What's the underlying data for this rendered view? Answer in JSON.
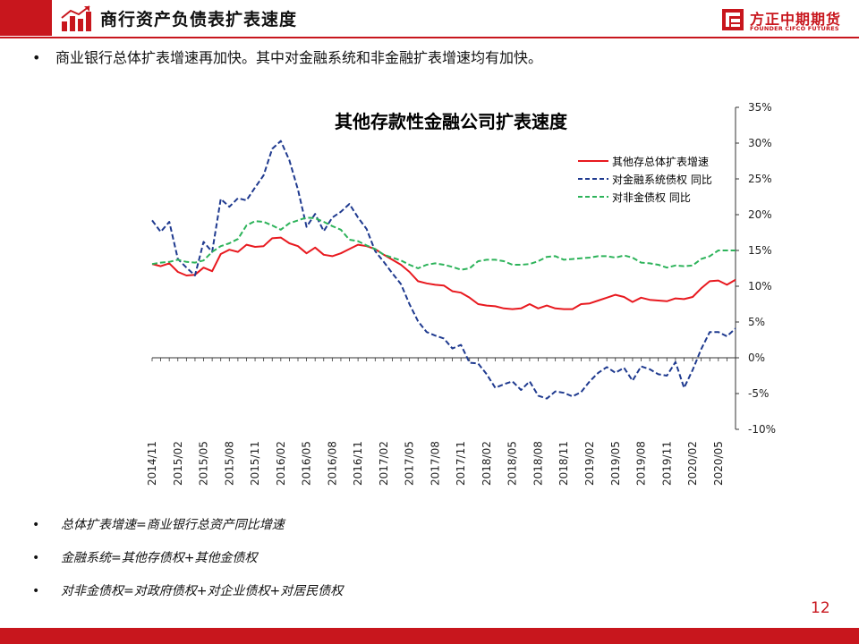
{
  "header": {
    "title": "商行资产负债表扩表速度",
    "logo_cn": "方正中期期货",
    "logo_en": "FOUNDER CIFCO FUTURES"
  },
  "bullet_main": "商业银行总体扩表增速再加快。其中对金融系统和非金融扩表增速均有加快。",
  "chart_data": {
    "type": "line",
    "title": "其他存款性金融公司扩表速度",
    "x": [
      "2014/11",
      "2014/12",
      "2015/01",
      "2015/02",
      "2015/03",
      "2015/04",
      "2015/05",
      "2015/06",
      "2015/07",
      "2015/08",
      "2015/09",
      "2015/10",
      "2015/11",
      "2015/12",
      "2016/01",
      "2016/02",
      "2016/03",
      "2016/04",
      "2016/05",
      "2016/06",
      "2016/07",
      "2016/08",
      "2016/09",
      "2016/10",
      "2016/11",
      "2016/12",
      "2017/01",
      "2017/02",
      "2017/03",
      "2017/04",
      "2017/05",
      "2017/06",
      "2017/07",
      "2017/08",
      "2017/09",
      "2017/10",
      "2017/11",
      "2017/12",
      "2018/01",
      "2018/02",
      "2018/03",
      "2018/04",
      "2018/05",
      "2018/06",
      "2018/07",
      "2018/08",
      "2018/09",
      "2018/10",
      "2018/11",
      "2018/12",
      "2019/01",
      "2019/02",
      "2019/03",
      "2019/04",
      "2019/05",
      "2019/06",
      "2019/07",
      "2019/08",
      "2019/09",
      "2019/10",
      "2019/11",
      "2019/12",
      "2020/01",
      "2020/02",
      "2020/03",
      "2020/04",
      "2020/05",
      "2020/06",
      "2020/07"
    ],
    "tick_labels": [
      "2014/11",
      "2015/02",
      "2015/05",
      "2015/08",
      "2015/11",
      "2016/02",
      "2016/05",
      "2016/08",
      "2016/11",
      "2017/02",
      "2017/05",
      "2017/08",
      "2017/11",
      "2018/02",
      "2018/05",
      "2018/08",
      "2018/11",
      "2019/02",
      "2019/05",
      "2019/08",
      "2019/11",
      "2020/02",
      "2020/05"
    ],
    "y_axis": {
      "min": -10,
      "max": 35,
      "step": 5,
      "position": "right",
      "format": "percent"
    },
    "legend_position": "top-right",
    "grid": false,
    "series": [
      {
        "name": "其他存总体扩表增速",
        "color": "#e8191f",
        "dash": "solid",
        "values": [
          13.1,
          12.8,
          13.2,
          12.0,
          11.5,
          11.6,
          12.6,
          12.1,
          14.5,
          15.1,
          14.8,
          15.8,
          15.5,
          15.6,
          16.7,
          16.8,
          16.0,
          15.6,
          14.6,
          15.4,
          14.4,
          14.2,
          14.6,
          15.2,
          15.8,
          15.6,
          15.2,
          14.4,
          13.7,
          13.0,
          12.0,
          10.7,
          10.4,
          10.2,
          10.1,
          9.3,
          9.1,
          8.4,
          7.5,
          7.3,
          7.2,
          6.9,
          6.8,
          6.9,
          7.5,
          6.9,
          7.3,
          6.9,
          6.8,
          6.8,
          7.5,
          7.6,
          8.0,
          8.4,
          8.8,
          8.5,
          7.8,
          8.4,
          8.1,
          8.0,
          7.9,
          8.3,
          8.2,
          8.5,
          9.7,
          10.7,
          10.8,
          10.2,
          10.9
        ]
      },
      {
        "name": "对金融系统债权  同比",
        "color": "#1f3a8f",
        "dash": "dashed",
        "values": [
          19.2,
          17.6,
          19.0,
          13.8,
          12.6,
          11.5,
          16.2,
          14.8,
          22.2,
          21.1,
          22.3,
          22.0,
          23.8,
          25.5,
          29.2,
          30.3,
          27.6,
          23.5,
          18.3,
          20.1,
          17.7,
          19.6,
          20.4,
          21.5,
          19.6,
          18.0,
          14.9,
          13.4,
          11.8,
          10.3,
          7.5,
          5.1,
          3.6,
          3.1,
          2.7,
          1.3,
          1.8,
          -0.7,
          -0.8,
          -2.3,
          -4.2,
          -3.7,
          -3.3,
          -4.5,
          -3.3,
          -5.3,
          -5.7,
          -4.7,
          -4.9,
          -5.4,
          -4.8,
          -3.3,
          -2.1,
          -1.3,
          -2.1,
          -1.4,
          -3.2,
          -1.2,
          -1.6,
          -2.3,
          -2.5,
          -0.6,
          -4.2,
          -1.7,
          1.2,
          3.6,
          3.6,
          3.0,
          4.1
        ]
      },
      {
        "name": "对非金债权  同比",
        "color": "#2db35a",
        "dash": "dashed",
        "values": [
          13.1,
          13.3,
          13.4,
          13.7,
          13.4,
          13.3,
          13.6,
          14.8,
          15.6,
          16.0,
          16.6,
          18.5,
          19.1,
          19.0,
          18.5,
          17.9,
          18.8,
          19.2,
          19.6,
          19.5,
          19.0,
          18.4,
          17.9,
          16.5,
          16.3,
          15.7,
          15.2,
          14.4,
          14.0,
          13.6,
          13.0,
          12.5,
          13.0,
          13.2,
          13.0,
          12.7,
          12.3,
          12.5,
          13.5,
          13.7,
          13.7,
          13.5,
          13.0,
          13.0,
          13.1,
          13.5,
          14.1,
          14.2,
          13.7,
          13.8,
          13.9,
          14.0,
          14.2,
          14.2,
          14.0,
          14.3,
          14.0,
          13.3,
          13.2,
          13.0,
          12.6,
          12.9,
          12.8,
          12.9,
          13.8,
          14.2,
          15.0,
          15.0,
          15.0
        ]
      }
    ]
  },
  "notes": [
    "总体扩表增速=商业银行总资产同比增速",
    "金融系统=其他存债权+其他金债权",
    "对非金债权=对政府债权+对企业债权+对居民债权"
  ],
  "bullet_glyph": "•",
  "page_number": "12",
  "colors": {
    "brand": "#c8161d"
  }
}
